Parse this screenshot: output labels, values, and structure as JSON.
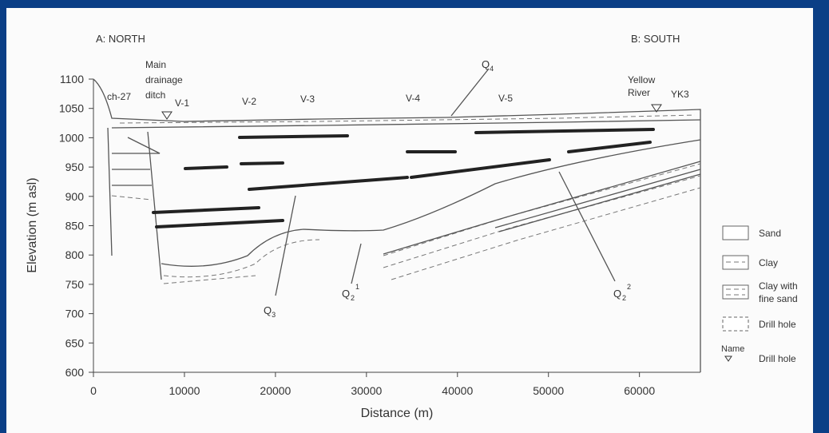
{
  "header": {
    "north": "A: NORTH",
    "south": "B: SOUTH"
  },
  "axes": {
    "y_label": "Elevation (m asl)",
    "x_label": "Distance (m)",
    "xlim": [
      0,
      66700
    ],
    "ylim": [
      600,
      1100
    ],
    "xticks": [
      0,
      10000,
      20000,
      30000,
      40000,
      50000,
      60000
    ],
    "yticks": [
      600,
      650,
      700,
      750,
      800,
      850,
      900,
      950,
      1000,
      1050,
      1100
    ]
  },
  "drill_holes": [
    "ch-27",
    "V-1",
    "V-2",
    "V-3",
    "V-4",
    "V-5",
    "YK3"
  ],
  "features": {
    "drainage": [
      "Main",
      "drainage",
      "ditch"
    ],
    "river": [
      "Yellow",
      "River"
    ]
  },
  "units": [
    {
      "base": "Q",
      "sub": "4"
    },
    {
      "base": "Q",
      "sub": "3"
    },
    {
      "base": "Q",
      "sub": "2",
      "sup": "1"
    },
    {
      "base": "Q",
      "sub": "2",
      "sup": "2"
    }
  ],
  "legend": [
    {
      "label": [
        "Sand"
      ]
    },
    {
      "label": [
        "Clay"
      ]
    },
    {
      "label": [
        "Clay with",
        "fine sand"
      ]
    },
    {
      "label": [
        "Drill hole"
      ]
    },
    {
      "symbol": "Name",
      "label": [
        "Drill hole"
      ]
    }
  ]
}
